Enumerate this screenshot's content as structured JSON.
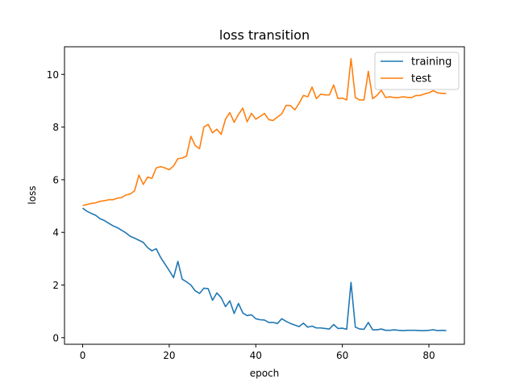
{
  "chart_data": {
    "type": "line",
    "title": "loss transition",
    "xlabel": "epoch",
    "ylabel": "loss",
    "xlim": [
      -4.2,
      88.2
    ],
    "ylim": [
      -0.25,
      11.05
    ],
    "xticks": [
      0,
      20,
      40,
      60,
      80
    ],
    "yticks": [
      0,
      2,
      4,
      6,
      8,
      10
    ],
    "grid": false,
    "legend_position": "top-right",
    "series": [
      {
        "name": "training",
        "color": "#1f77b4",
        "x": [
          0,
          1,
          2,
          3,
          4,
          5,
          6,
          7,
          8,
          9,
          10,
          11,
          12,
          13,
          14,
          15,
          16,
          17,
          18,
          19,
          20,
          21,
          22,
          23,
          24,
          25,
          26,
          27,
          28,
          29,
          30,
          31,
          32,
          33,
          34,
          35,
          36,
          37,
          38,
          39,
          40,
          41,
          42,
          43,
          44,
          45,
          46,
          47,
          48,
          49,
          50,
          51,
          52,
          53,
          54,
          55,
          56,
          57,
          58,
          59,
          60,
          61,
          62,
          63,
          64,
          65,
          66,
          67,
          68,
          69,
          70,
          71,
          72,
          73,
          74,
          75,
          76,
          77,
          78,
          79,
          80,
          81,
          82,
          83,
          84
        ],
        "values": [
          4.92,
          4.8,
          4.72,
          4.65,
          4.52,
          4.45,
          4.35,
          4.25,
          4.18,
          4.08,
          3.98,
          3.85,
          3.78,
          3.7,
          3.62,
          3.42,
          3.3,
          3.38,
          3.05,
          2.8,
          2.55,
          2.28,
          2.9,
          2.22,
          2.12,
          2.0,
          1.78,
          1.68,
          1.88,
          1.86,
          1.42,
          1.7,
          1.52,
          1.18,
          1.4,
          0.92,
          1.3,
          0.94,
          0.84,
          0.87,
          0.72,
          0.68,
          0.67,
          0.58,
          0.58,
          0.54,
          0.72,
          0.62,
          0.54,
          0.48,
          0.42,
          0.55,
          0.4,
          0.44,
          0.37,
          0.37,
          0.35,
          0.33,
          0.5,
          0.35,
          0.36,
          0.32,
          2.1,
          0.4,
          0.33,
          0.32,
          0.58,
          0.3,
          0.3,
          0.33,
          0.28,
          0.28,
          0.3,
          0.28,
          0.27,
          0.28,
          0.28,
          0.28,
          0.27,
          0.27,
          0.28,
          0.3,
          0.27,
          0.28,
          0.27
        ]
      },
      {
        "name": "test",
        "color": "#ff7f0e",
        "x": [
          0,
          1,
          2,
          3,
          4,
          5,
          6,
          7,
          8,
          9,
          10,
          11,
          12,
          13,
          14,
          15,
          16,
          17,
          18,
          19,
          20,
          21,
          22,
          23,
          24,
          25,
          26,
          27,
          28,
          29,
          30,
          31,
          32,
          33,
          34,
          35,
          36,
          37,
          38,
          39,
          40,
          41,
          42,
          43,
          44,
          45,
          46,
          47,
          48,
          49,
          50,
          51,
          52,
          53,
          54,
          55,
          56,
          57,
          58,
          59,
          60,
          61,
          62,
          63,
          64,
          65,
          66,
          67,
          68,
          69,
          70,
          71,
          72,
          73,
          74,
          75,
          76,
          77,
          78,
          79,
          80,
          81,
          82,
          83,
          84
        ],
        "values": [
          5.02,
          5.06,
          5.1,
          5.12,
          5.18,
          5.2,
          5.24,
          5.24,
          5.3,
          5.32,
          5.42,
          5.46,
          5.58,
          6.18,
          5.82,
          6.1,
          6.05,
          6.45,
          6.5,
          6.45,
          6.38,
          6.52,
          6.8,
          6.82,
          6.9,
          7.65,
          7.3,
          7.18,
          8.0,
          8.1,
          7.78,
          7.92,
          7.72,
          8.3,
          8.55,
          8.18,
          8.48,
          8.72,
          8.2,
          8.52,
          8.3,
          8.4,
          8.52,
          8.28,
          8.25,
          8.38,
          8.5,
          8.82,
          8.82,
          8.65,
          8.9,
          9.2,
          9.15,
          9.52,
          9.08,
          9.25,
          9.22,
          9.22,
          9.6,
          9.08,
          9.1,
          9.03,
          10.6,
          9.12,
          9.03,
          9.03,
          10.12,
          9.08,
          9.2,
          9.4,
          9.12,
          9.15,
          9.12,
          9.12,
          9.15,
          9.13,
          9.12,
          9.2,
          9.2,
          9.26,
          9.3,
          9.38,
          9.3,
          9.28,
          9.28
        ]
      }
    ]
  }
}
